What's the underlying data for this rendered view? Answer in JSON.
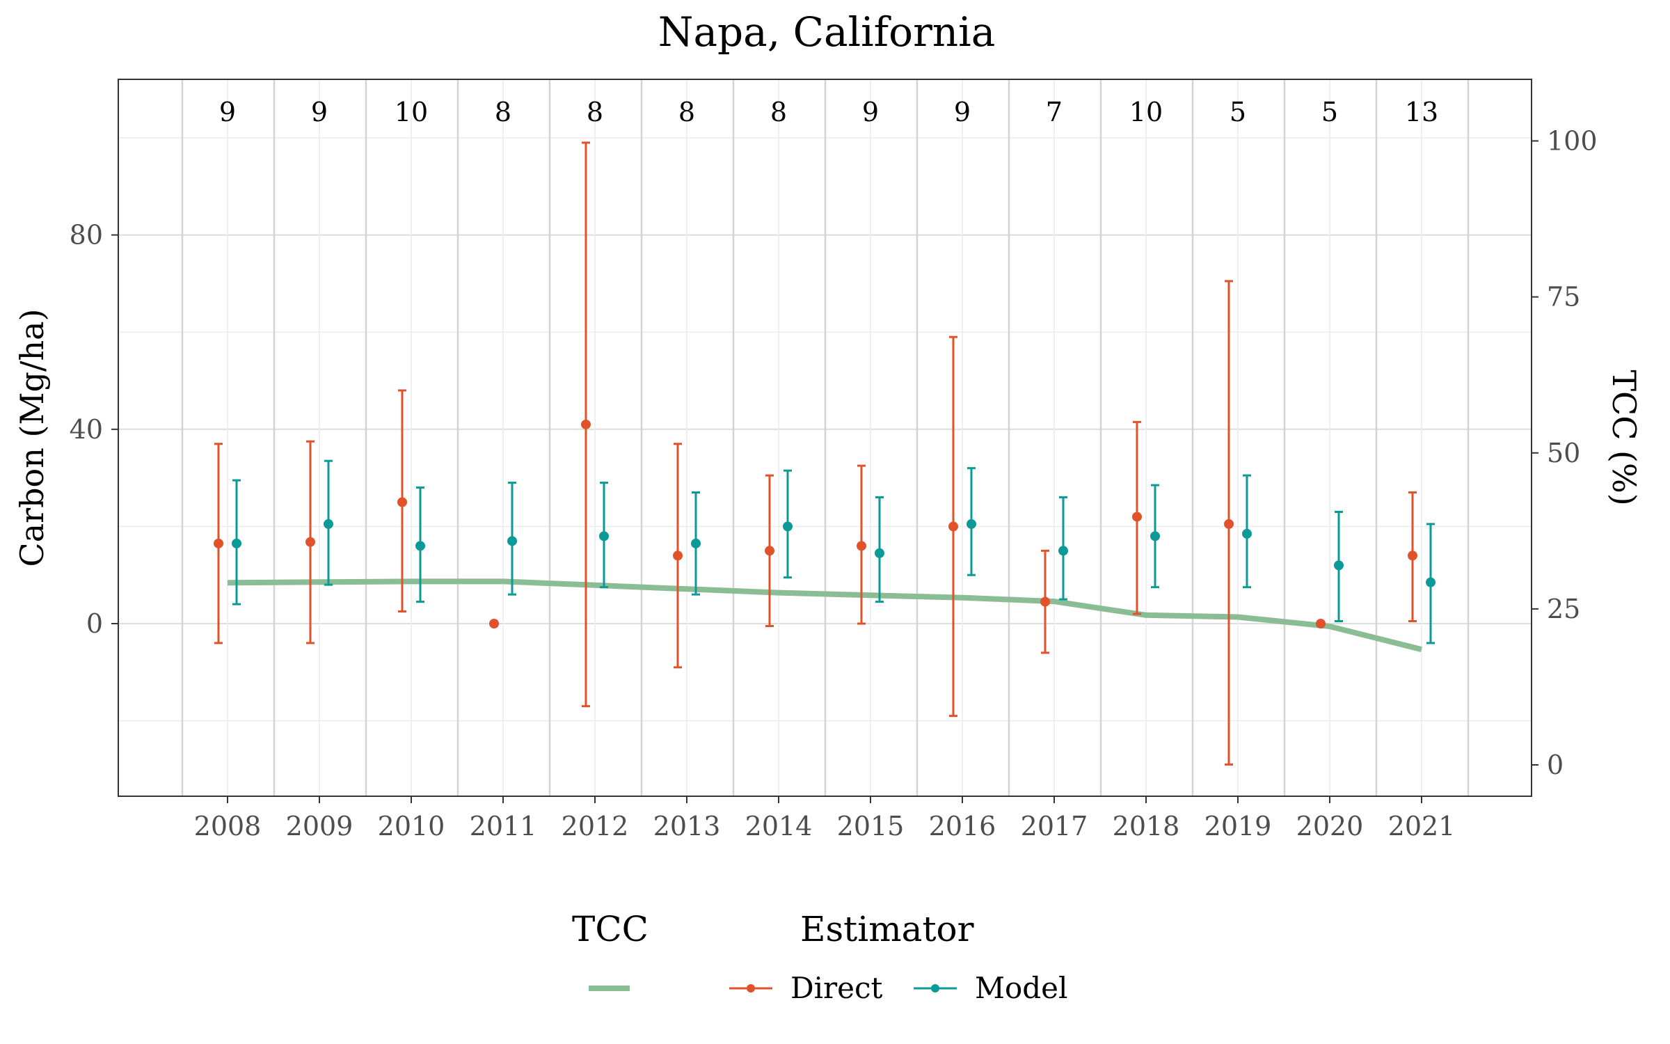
{
  "chart_data": {
    "type": "line",
    "title": "Napa, California",
    "xlabel": "",
    "ylabel": "Carbon (Mg/ha)",
    "y2label": "TCC (%)",
    "categories": [
      "2008",
      "2009",
      "2010",
      "2011",
      "2012",
      "2013",
      "2014",
      "2015",
      "2016",
      "2017",
      "2018",
      "2019",
      "2020",
      "2021"
    ],
    "counts": [
      "9",
      "9",
      "10",
      "8",
      "8",
      "8",
      "8",
      "9",
      "9",
      "7",
      "10",
      "5",
      "5",
      "13"
    ],
    "ylim": [
      -35,
      112
    ],
    "y_ticks": [
      0,
      40,
      80
    ],
    "y2lim": [
      -5,
      110
    ],
    "y2_ticks": [
      0,
      25,
      50,
      75,
      100
    ],
    "grid": true,
    "legend_position": "bottom",
    "legend": {
      "tcc_title": "TCC",
      "estimator_title": "Estimator",
      "entries": [
        "Direct",
        "Model"
      ]
    },
    "colors": {
      "direct": "#E2522A",
      "model": "#0C9A98",
      "tcc": "#8BBD94",
      "grid": "#e5e5e5",
      "grid_major": "#d9d9d9"
    },
    "series": [
      {
        "name": "Direct",
        "y": [
          16.5,
          16.8,
          25,
          0,
          41,
          14,
          15,
          16,
          20,
          4.5,
          22,
          20.5,
          0,
          14
        ],
        "lower": [
          -4,
          -4,
          2.5,
          null,
          -17,
          -9,
          -0.5,
          0,
          -19,
          -6,
          2,
          -29,
          null,
          0.5
        ],
        "upper": [
          37,
          37.5,
          48,
          null,
          99,
          37,
          30.5,
          32.5,
          59,
          15,
          41.5,
          70.5,
          null,
          27
        ]
      },
      {
        "name": "Model",
        "y": [
          16.5,
          20.5,
          16,
          17,
          18,
          16.5,
          20,
          14.5,
          20.5,
          15,
          18,
          18.5,
          12,
          8.5
        ],
        "lower": [
          4,
          8,
          4.5,
          6,
          7.5,
          6,
          9.5,
          4.5,
          10,
          5,
          7.5,
          7.5,
          0.5,
          -4
        ],
        "upper": [
          29.5,
          33.5,
          28,
          29,
          29,
          27,
          31.5,
          26,
          32,
          26,
          28.5,
          30.5,
          23,
          20.5
        ]
      },
      {
        "name": "TCC",
        "y2": [
          29.2,
          29.3,
          29.4,
          29.4,
          28.8,
          28.2,
          27.6,
          27.2,
          26.8,
          26.2,
          24,
          23.7,
          22.2,
          18.5
        ]
      }
    ]
  }
}
